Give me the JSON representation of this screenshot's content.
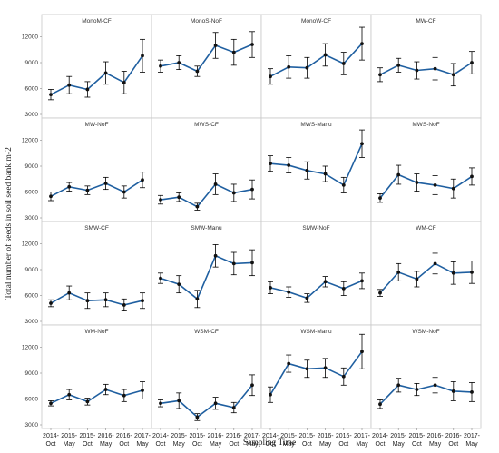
{
  "chart_data": {
    "type": "line",
    "ylabel": "Total number of seeds in soil seed bank m-2",
    "xlabel": "Sampling Time",
    "x_categories": [
      "2014-Oct",
      "2015-May",
      "2015-Oct",
      "2016-May",
      "2016-Oct",
      "2017-May"
    ],
    "x_tick_lines": [
      [
        "2014-",
        "Oct"
      ],
      [
        "2015-",
        "May"
      ],
      [
        "2015-",
        "Oct"
      ],
      [
        "2016-",
        "May"
      ],
      [
        "2016-",
        "Oct"
      ],
      [
        "2017-",
        "May"
      ]
    ],
    "ylim": [
      3000,
      13000
    ],
    "yticks": [
      "3000",
      "6000",
      "9000",
      "12000"
    ],
    "series_color": "#1f5fa0",
    "grid": false,
    "panels": [
      {
        "title": "MonoM-CF",
        "values": [
          5300,
          6400,
          5900,
          7800,
          6700,
          9800
        ],
        "errors": [
          600,
          1000,
          900,
          1300,
          1300,
          1900
        ]
      },
      {
        "title": "MonoS-NoF",
        "values": [
          8600,
          9000,
          8000,
          11000,
          10200,
          11100
        ],
        "errors": [
          700,
          800,
          600,
          1500,
          1500,
          1500
        ]
      },
      {
        "title": "MonoW-CF",
        "values": [
          7400,
          8500,
          8400,
          9900,
          8900,
          11200
        ],
        "errors": [
          900,
          1300,
          1200,
          1300,
          1300,
          1900
        ]
      },
      {
        "title": "MW-CF",
        "values": [
          7600,
          8700,
          8100,
          8300,
          7600,
          9000
        ],
        "errors": [
          800,
          800,
          1000,
          1300,
          1300,
          1300
        ]
      },
      {
        "title": "MW-NoF",
        "values": [
          5500,
          6600,
          6200,
          7000,
          6000,
          7400
        ],
        "errors": [
          500,
          500,
          500,
          700,
          700,
          900
        ]
      },
      {
        "title": "MWS-CF",
        "values": [
          5100,
          5400,
          4300,
          6900,
          5900,
          6300
        ],
        "errors": [
          500,
          500,
          400,
          1200,
          1000,
          1100
        ]
      },
      {
        "title": "MWS-Manu",
        "values": [
          9300,
          9100,
          8500,
          8100,
          6800,
          11600
        ],
        "errors": [
          900,
          900,
          1000,
          900,
          900,
          1600
        ]
      },
      {
        "title": "MWS-NoF",
        "values": [
          5300,
          8000,
          7100,
          6800,
          6400,
          7800
        ],
        "errors": [
          500,
          1100,
          1000,
          1100,
          1100,
          1000
        ]
      },
      {
        "title": "SMW-CF",
        "values": [
          5100,
          6300,
          5400,
          5500,
          4900,
          5400
        ],
        "errors": [
          400,
          800,
          900,
          800,
          700,
          900
        ]
      },
      {
        "title": "SMW-Manu",
        "values": [
          8000,
          7300,
          5600,
          10600,
          9700,
          9800
        ],
        "errors": [
          600,
          1000,
          1000,
          1300,
          1300,
          1500
        ]
      },
      {
        "title": "SMW-NoF",
        "values": [
          6900,
          6400,
          5700,
          7600,
          6800,
          7700
        ],
        "errors": [
          700,
          600,
          500,
          600,
          800,
          900
        ]
      },
      {
        "title": "WM-CF",
        "values": [
          6300,
          8700,
          7900,
          9700,
          8600,
          8700
        ],
        "errors": [
          400,
          1000,
          900,
          1200,
          1300,
          1300
        ]
      },
      {
        "title": "WM-NoF",
        "values": [
          5500,
          6500,
          5700,
          7100,
          6400,
          7000
        ],
        "errors": [
          300,
          600,
          400,
          600,
          700,
          1000
        ]
      },
      {
        "title": "WSM-CF",
        "values": [
          5500,
          5800,
          3900,
          5500,
          5000,
          7600
        ],
        "errors": [
          400,
          900,
          400,
          700,
          600,
          1200
        ]
      },
      {
        "title": "WSM-Manu",
        "values": [
          6500,
          10100,
          9500,
          9600,
          8600,
          11500
        ],
        "errors": [
          900,
          1000,
          1000,
          1100,
          1000,
          2000
        ]
      },
      {
        "title": "WSM-NoF",
        "values": [
          5400,
          7600,
          7100,
          7600,
          6900,
          6800
        ],
        "errors": [
          500,
          800,
          700,
          900,
          1100,
          1100
        ]
      }
    ]
  }
}
